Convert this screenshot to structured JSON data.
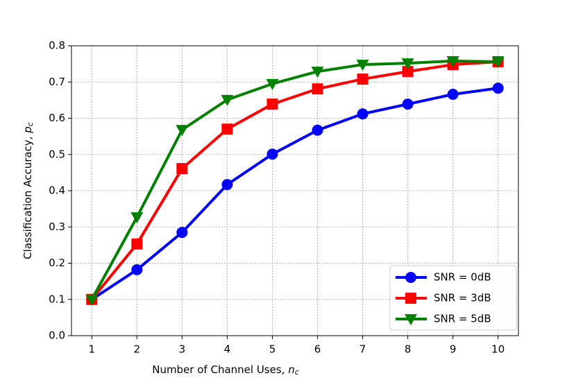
{
  "chart_data": {
    "type": "line",
    "xlabel": {
      "text": "Number of Channel Uses, ",
      "var": "n",
      "sub": "c"
    },
    "ylabel": {
      "text": "Classification Accuracy, ",
      "var": "p",
      "sub": "c"
    },
    "x": [
      1,
      2,
      3,
      4,
      5,
      6,
      7,
      8,
      9,
      10
    ],
    "xlim": [
      0.55,
      10.45
    ],
    "xticks": [
      1,
      2,
      3,
      4,
      5,
      6,
      7,
      8,
      9,
      10
    ],
    "ylim": [
      0,
      0.8
    ],
    "yticks": [
      {
        "value": 0,
        "label": "0.0"
      },
      0.1,
      0.2,
      0.3,
      0.4,
      0.5,
      0.6,
      0.7,
      0.8
    ],
    "grid": true,
    "legend": "lower right",
    "series": [
      {
        "name": "SNR = 0dB",
        "color": "#0000ff",
        "marker": "circle",
        "values": [
          0.1,
          0.182,
          0.285,
          0.417,
          0.501,
          0.567,
          0.612,
          0.639,
          0.666,
          0.683
        ]
      },
      {
        "name": "SNR = 3dB",
        "color": "#ff0000",
        "marker": "square",
        "values": [
          0.1,
          0.253,
          0.461,
          0.57,
          0.639,
          0.681,
          0.708,
          0.729,
          0.748,
          0.756
        ]
      },
      {
        "name": "SNR = 5dB",
        "color": "#008000",
        "marker": "triangle-down",
        "values": [
          0.1,
          0.327,
          0.568,
          0.651,
          0.695,
          0.729,
          0.748,
          0.752,
          0.758,
          0.756
        ]
      }
    ]
  }
}
